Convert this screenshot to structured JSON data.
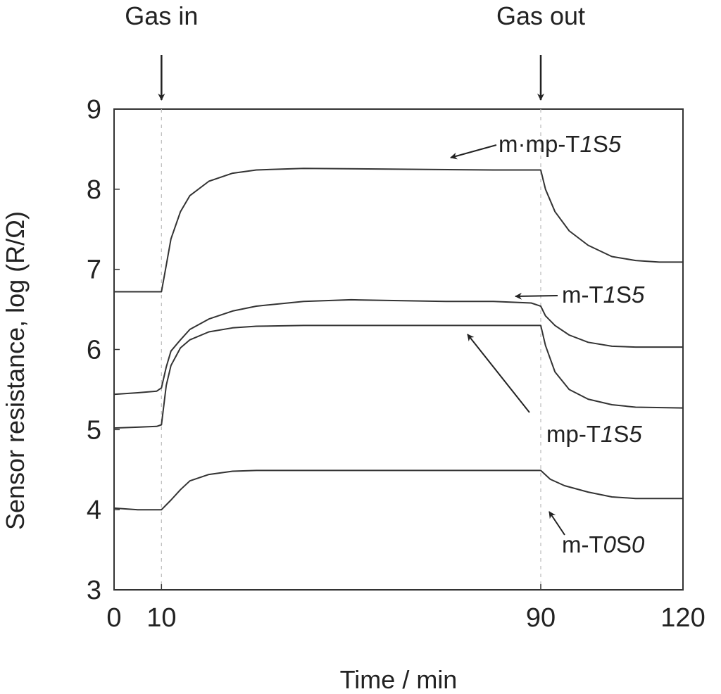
{
  "chart_data": {
    "type": "line",
    "title": "",
    "xlabel": "Time / min",
    "ylabel": "Sensor resistance, log (R/Ω)",
    "xlim": [
      0,
      120
    ],
    "ylim": [
      3,
      9
    ],
    "x_ticks": [
      0,
      10,
      90,
      120
    ],
    "y_ticks": [
      3,
      4,
      5,
      6,
      7,
      8,
      9
    ],
    "grid": false,
    "annotations": [
      {
        "text": "Gas in",
        "x": 10
      },
      {
        "text": "Gas out",
        "x": 90
      }
    ],
    "series": [
      {
        "name": "m·mp-T1S5",
        "label_parts": [
          {
            "text": "m·mp-T",
            "italic": false
          },
          {
            "text": "1",
            "italic": true
          },
          {
            "text": "S",
            "italic": false
          },
          {
            "text": "5",
            "italic": true
          }
        ],
        "points": [
          [
            0,
            6.72
          ],
          [
            5,
            6.72
          ],
          [
            10,
            6.72
          ],
          [
            11,
            7.05
          ],
          [
            12,
            7.38
          ],
          [
            14,
            7.72
          ],
          [
            16,
            7.92
          ],
          [
            20,
            8.1
          ],
          [
            25,
            8.2
          ],
          [
            30,
            8.24
          ],
          [
            40,
            8.26
          ],
          [
            60,
            8.25
          ],
          [
            80,
            8.24
          ],
          [
            90,
            8.24
          ],
          [
            91,
            8.0
          ],
          [
            93,
            7.72
          ],
          [
            96,
            7.48
          ],
          [
            100,
            7.3
          ],
          [
            105,
            7.16
          ],
          [
            110,
            7.11
          ],
          [
            115,
            7.09
          ],
          [
            120,
            7.09
          ]
        ]
      },
      {
        "name": "m-T1S5",
        "label_parts": [
          {
            "text": "m-T",
            "italic": false
          },
          {
            "text": "1",
            "italic": true
          },
          {
            "text": "S",
            "italic": false
          },
          {
            "text": "5",
            "italic": true
          }
        ],
        "points": [
          [
            0,
            5.44
          ],
          [
            5,
            5.46
          ],
          [
            9,
            5.48
          ],
          [
            10,
            5.52
          ],
          [
            11,
            5.78
          ],
          [
            12,
            5.98
          ],
          [
            14,
            6.12
          ],
          [
            16,
            6.25
          ],
          [
            20,
            6.38
          ],
          [
            25,
            6.48
          ],
          [
            30,
            6.54
          ],
          [
            40,
            6.6
          ],
          [
            50,
            6.62
          ],
          [
            60,
            6.61
          ],
          [
            70,
            6.6
          ],
          [
            80,
            6.6
          ],
          [
            88,
            6.58
          ],
          [
            90,
            6.54
          ],
          [
            91,
            6.42
          ],
          [
            93,
            6.3
          ],
          [
            96,
            6.18
          ],
          [
            100,
            6.09
          ],
          [
            105,
            6.04
          ],
          [
            110,
            6.03
          ],
          [
            120,
            6.03
          ]
        ]
      },
      {
        "name": "mp-T1S5",
        "label_parts": [
          {
            "text": "mp-T",
            "italic": false
          },
          {
            "text": "1",
            "italic": true
          },
          {
            "text": "S",
            "italic": false
          },
          {
            "text": "5",
            "italic": true
          }
        ],
        "points": [
          [
            0,
            5.02
          ],
          [
            5,
            5.03
          ],
          [
            9,
            5.04
          ],
          [
            10,
            5.06
          ],
          [
            11,
            5.55
          ],
          [
            12,
            5.8
          ],
          [
            14,
            6.02
          ],
          [
            16,
            6.12
          ],
          [
            20,
            6.22
          ],
          [
            25,
            6.27
          ],
          [
            30,
            6.29
          ],
          [
            40,
            6.3
          ],
          [
            60,
            6.3
          ],
          [
            80,
            6.3
          ],
          [
            90,
            6.3
          ],
          [
            91,
            6.05
          ],
          [
            93,
            5.72
          ],
          [
            96,
            5.5
          ],
          [
            100,
            5.38
          ],
          [
            105,
            5.31
          ],
          [
            110,
            5.28
          ],
          [
            120,
            5.27
          ]
        ]
      },
      {
        "name": "m-T0S0",
        "label_parts": [
          {
            "text": "m-T",
            "italic": false
          },
          {
            "text": "0",
            "italic": true
          },
          {
            "text": "S",
            "italic": false
          },
          {
            "text": "0",
            "italic": true
          }
        ],
        "points": [
          [
            0,
            4.02
          ],
          [
            5,
            4.0
          ],
          [
            10,
            4.0
          ],
          [
            12,
            4.12
          ],
          [
            14,
            4.25
          ],
          [
            16,
            4.36
          ],
          [
            20,
            4.44
          ],
          [
            25,
            4.48
          ],
          [
            30,
            4.49
          ],
          [
            50,
            4.49
          ],
          [
            70,
            4.49
          ],
          [
            90,
            4.49
          ],
          [
            92,
            4.38
          ],
          [
            95,
            4.3
          ],
          [
            100,
            4.22
          ],
          [
            105,
            4.16
          ],
          [
            110,
            4.14
          ],
          [
            120,
            4.14
          ]
        ]
      }
    ]
  }
}
